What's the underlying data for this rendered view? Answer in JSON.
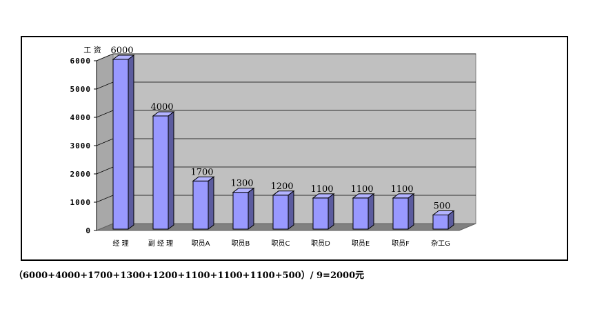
{
  "chart_data": {
    "type": "bar",
    "ylabel": "工 资",
    "categories": [
      "经 理",
      "副 经 理",
      "职员A",
      "职员B",
      "职员C",
      "职员D",
      "职员E",
      "职员F",
      "杂工G"
    ],
    "values": [
      6000,
      4000,
      1700,
      1300,
      1200,
      1100,
      1100,
      1100,
      500
    ],
    "yticks": [
      0,
      1000,
      2000,
      3000,
      4000,
      5000,
      6000
    ],
    "ylim": [
      0,
      6000
    ],
    "grid": true,
    "colors": {
      "bar_front": "#9999ff",
      "bar_side": "#5c5c9e",
      "bar_top": "#b3b3ff",
      "plot_back": "#c0c0c0",
      "plot_floor": "#808080"
    }
  },
  "formula_text": "（6000+4000+1700+1300+1200+1100+1100+1100+500）/ 9=2000元"
}
